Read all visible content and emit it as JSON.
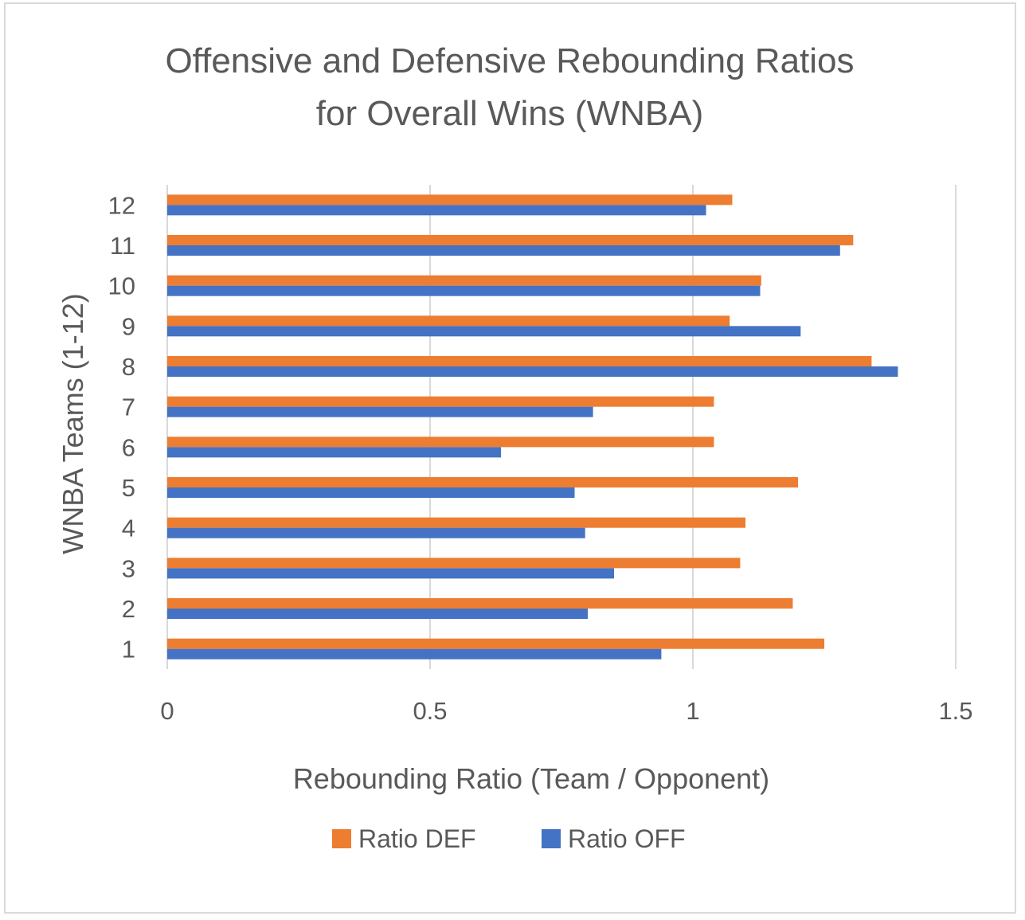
{
  "chart_data": {
    "type": "bar",
    "orientation": "horizontal",
    "title_lines": [
      "Offensive and Defensive Rebounding Ratios",
      "for Overall Wins (WNBA)"
    ],
    "xlabel": "Rebounding Ratio (Team / Opponent)",
    "ylabel": "WNBA Teams (1-12)",
    "categories": [
      "1",
      "2",
      "3",
      "4",
      "5",
      "6",
      "7",
      "8",
      "9",
      "10",
      "11",
      "12"
    ],
    "xlim": [
      0,
      1.5
    ],
    "x_ticks": [
      0,
      0.5,
      1,
      1.5
    ],
    "x_tick_labels": [
      "0",
      "0.5",
      "1",
      "1.5"
    ],
    "grid": "vertical",
    "legend_position": "bottom",
    "series": [
      {
        "name": "Ratio DEF",
        "color": "#ed7d31",
        "values": [
          1.25,
          1.19,
          1.09,
          1.1,
          1.2,
          1.04,
          1.04,
          1.34,
          1.07,
          1.13,
          1.305,
          1.075
        ]
      },
      {
        "name": "Ratio OFF",
        "color": "#4472c4",
        "values": [
          0.94,
          0.8,
          0.85,
          0.795,
          0.775,
          0.635,
          0.81,
          1.39,
          1.205,
          1.128,
          1.28,
          1.025
        ]
      }
    ]
  }
}
